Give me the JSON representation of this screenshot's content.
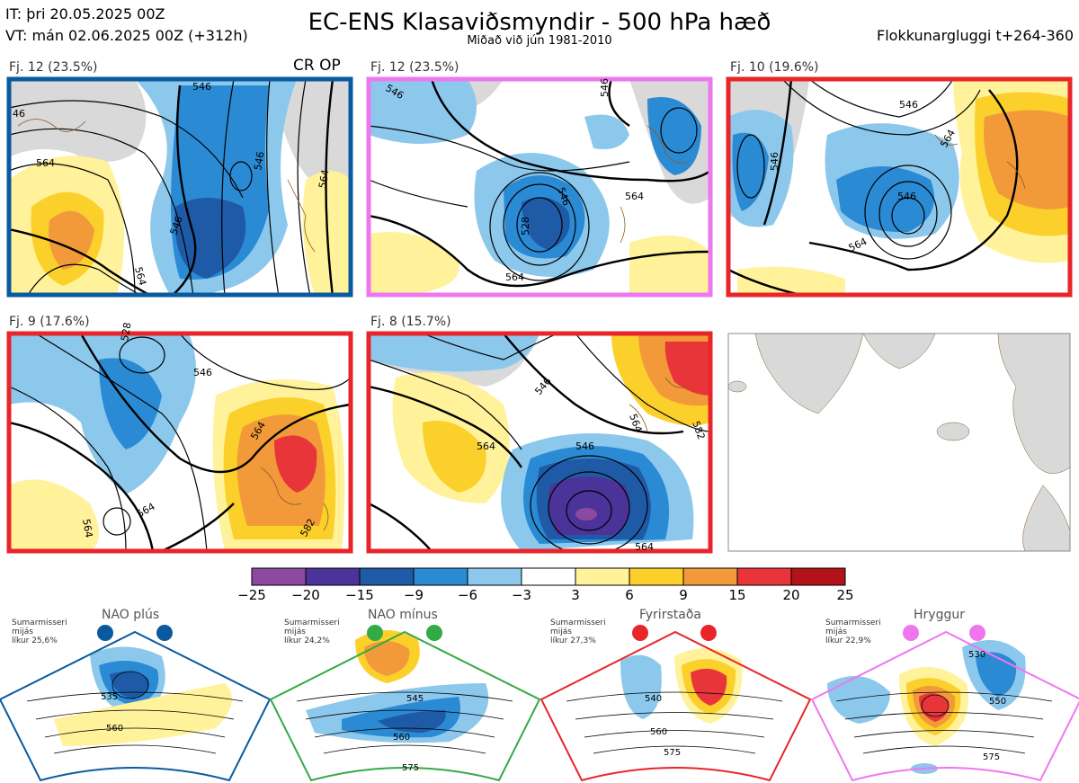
{
  "header": {
    "it_line": "IT: þri 20.05.2025 00Z",
    "vt_line": "VT: mán 02.06.2025 00Z  (+312h)",
    "title": "EC-ENS Klasaviðsmyndir - 500 hPa hæð",
    "subtitle": "Miðað við jún 1981-2010",
    "window": "Flokkunargluggi t+264-360"
  },
  "panels": [
    {
      "label": "Fj. 12 (23.5%)",
      "extra": "CR OP",
      "border": "#0a5aa0",
      "contours": [
        "546",
        "546",
        "564",
        "564",
        "546",
        "564",
        "46"
      ],
      "anoms": [
        {
          "v": -12
        },
        {
          "v": 8
        }
      ]
    },
    {
      "label": "Fj. 12 (23.5%)",
      "extra": "",
      "border": "#ee77ee",
      "contours": [
        "546",
        "546",
        "564",
        "564",
        "528",
        "546"
      ],
      "anoms": [
        {
          "v": -10
        },
        {
          "v": 4
        }
      ]
    },
    {
      "label": "Fj. 10 (19.6%)",
      "extra": "",
      "border": "#e8262a",
      "contours": [
        "546",
        "564",
        "546",
        "564",
        "546"
      ],
      "anoms": [
        {
          "v": 10
        },
        {
          "v": -8
        }
      ]
    },
    {
      "label": "Fj. 9 (17.6%)",
      "extra": "",
      "border": "#e8262a",
      "contours": [
        "546",
        "564",
        "564",
        "564",
        "582",
        "528"
      ],
      "anoms": [
        {
          "v": 15
        },
        {
          "v": -7
        }
      ]
    },
    {
      "label": "Fj. 8 (15.7%)",
      "extra": "",
      "border": "#e8262a",
      "contours": [
        "546",
        "546",
        "564",
        "564",
        "564",
        "582"
      ],
      "anoms": [
        {
          "v": -20
        },
        {
          "v": 12
        }
      ]
    }
  ],
  "colorbar": {
    "ticks": [
      "−25",
      "−20",
      "−15",
      "−9",
      "−6",
      "−3",
      "3",
      "6",
      "9",
      "15",
      "20",
      "25"
    ],
    "colors": [
      "#8b4aa0",
      "#4b3399",
      "#1f5aa6",
      "#2b8ad4",
      "#8cc8ec",
      "#ffffff",
      "#fff29a",
      "#fcd02a",
      "#f29a3a",
      "#e8353a",
      "#b3121a"
    ]
  },
  "regimes": [
    {
      "name": "NAO plús",
      "season": "Sumarmisseri",
      "qual": "mijás",
      "prob": "líkur 25,6%",
      "color": "#0a5aa0",
      "contour_labels": [
        "535",
        "560"
      ]
    },
    {
      "name": "NAO mínus",
      "season": "Sumarmisseri",
      "qual": "mijás",
      "prob": "líkur 24,2%",
      "color": "#33aa44",
      "contour_labels": [
        "545",
        "560",
        "575"
      ]
    },
    {
      "name": "Fyrirstaða",
      "season": "Sumarmisseri",
      "qual": "mijás",
      "prob": "líkur 27,3%",
      "color": "#e8262a",
      "contour_labels": [
        "540",
        "560",
        "575"
      ]
    },
    {
      "name": "Hryggur",
      "season": "Sumarmisseri",
      "qual": "mijás",
      "prob": "líkur 22,9%",
      "color": "#ee77ee",
      "contour_labels": [
        "530",
        "550",
        "575"
      ]
    }
  ]
}
